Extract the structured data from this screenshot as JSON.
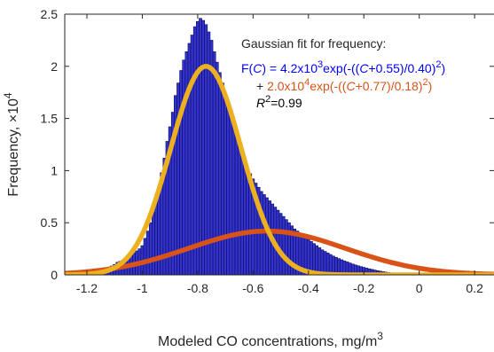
{
  "chart_data": {
    "type": "bar",
    "xlabel": "Modeled CO concentrations, mg/m",
    "xlabel_sup": "3",
    "ylabel": "Frequency, ×10",
    "ylabel_sup": "4",
    "xlim": [
      -1.28,
      0.27
    ],
    "ylim": [
      0,
      2.5
    ],
    "x_ticks": [
      -1.2,
      -1,
      -0.8,
      -0.6,
      -0.4,
      -0.2,
      0,
      0.2
    ],
    "x_tick_labels": [
      "-1.2",
      "-1",
      "-0.8",
      "-0.6",
      "-0.4",
      "-0.2",
      "0",
      "0.2"
    ],
    "y_ticks": [
      0,
      0.5,
      1,
      1.5,
      2,
      2.5
    ],
    "y_tick_labels": [
      "0",
      "0.5",
      "1",
      "1.5",
      "2",
      "2.5"
    ],
    "bin_width": 0.01,
    "histogram": {
      "x": [
        -1.2,
        -1.19,
        -1.18,
        -1.17,
        -1.16,
        -1.15,
        -1.14,
        -1.13,
        -1.12,
        -1.11,
        -1.1,
        -1.09,
        -1.08,
        -1.07,
        -1.06,
        -1.05,
        -1.04,
        -1.03,
        -1.02,
        -1.01,
        -1.0,
        -0.99,
        -0.98,
        -0.97,
        -0.96,
        -0.95,
        -0.94,
        -0.93,
        -0.92,
        -0.91,
        -0.9,
        -0.89,
        -0.88,
        -0.87,
        -0.86,
        -0.85,
        -0.84,
        -0.83,
        -0.82,
        -0.81,
        -0.8,
        -0.79,
        -0.78,
        -0.77,
        -0.76,
        -0.75,
        -0.74,
        -0.73,
        -0.72,
        -0.71,
        -0.7,
        -0.69,
        -0.68,
        -0.67,
        -0.66,
        -0.65,
        -0.64,
        -0.63,
        -0.62,
        -0.61,
        -0.6,
        -0.59,
        -0.58,
        -0.57,
        -0.56,
        -0.55,
        -0.54,
        -0.53,
        -0.52,
        -0.51,
        -0.5,
        -0.49,
        -0.48,
        -0.47,
        -0.46,
        -0.45,
        -0.44,
        -0.43,
        -0.42,
        -0.41,
        -0.4,
        -0.39,
        -0.38,
        -0.37,
        -0.36,
        -0.35,
        -0.34,
        -0.33,
        -0.32,
        -0.31,
        -0.3,
        -0.29,
        -0.28,
        -0.27,
        -0.26,
        -0.25,
        -0.24,
        -0.23,
        -0.22,
        -0.21,
        -0.2,
        -0.19,
        -0.18,
        -0.17,
        -0.16,
        -0.15,
        -0.14,
        -0.13,
        -0.12,
        -0.11,
        -0.1,
        -0.09,
        -0.08,
        -0.07,
        -0.06,
        -0.05,
        -0.04,
        -0.03,
        -0.02,
        -0.01,
        0.0,
        0.01,
        0.02
      ],
      "values": [
        0.004,
        0.006,
        0.008,
        0.012,
        0.015,
        0.02,
        0.035,
        0.06,
        0.075,
        0.085,
        0.1,
        0.12,
        0.13,
        0.14,
        0.15,
        0.17,
        0.19,
        0.21,
        0.23,
        0.25,
        0.28,
        0.35,
        0.42,
        0.5,
        0.6,
        0.72,
        0.84,
        0.98,
        1.12,
        1.28,
        1.42,
        1.56,
        1.72,
        1.84,
        1.96,
        2.06,
        2.14,
        2.22,
        2.3,
        2.38,
        2.43,
        2.46,
        2.44,
        2.4,
        2.33,
        2.25,
        2.14,
        2.04,
        1.94,
        1.84,
        1.74,
        1.64,
        1.54,
        1.44,
        1.33,
        1.24,
        1.16,
        1.08,
        1.02,
        0.97,
        0.92,
        0.88,
        0.84,
        0.8,
        0.77,
        0.74,
        0.71,
        0.68,
        0.65,
        0.62,
        0.59,
        0.56,
        0.53,
        0.5,
        0.47,
        0.44,
        0.42,
        0.4,
        0.38,
        0.36,
        0.34,
        0.32,
        0.3,
        0.28,
        0.26,
        0.24,
        0.225,
        0.21,
        0.195,
        0.18,
        0.168,
        0.156,
        0.145,
        0.134,
        0.124,
        0.114,
        0.104,
        0.095,
        0.087,
        0.079,
        0.072,
        0.065,
        0.058,
        0.052,
        0.046,
        0.04,
        0.035,
        0.03,
        0.026,
        0.022,
        0.019,
        0.016,
        0.013,
        0.011,
        0.009,
        0.007,
        0.005,
        0.004,
        0.003,
        0.002,
        0.0015,
        0.001,
        0.0005
      ]
    },
    "fits": [
      {
        "color": "#d95319",
        "amplitude": 0.42,
        "center": -0.55,
        "width": 0.4
      },
      {
        "color": "#edb120",
        "amplitude": 2.0,
        "center": -0.77,
        "width": 0.18
      }
    ],
    "colors": {
      "bar_fill": "#3333cc",
      "bar_edge": "#0a0a5c",
      "axis": "#262626",
      "blue_text": "#0000ff",
      "red_text": "#d95319"
    },
    "annotation": {
      "title": "Gaussian fit for frequency:",
      "line1_prefix": "F(",
      "line1_var": "C",
      "line1_mid": ") = 4.2x10",
      "line1_sup": "3",
      "line1_exp_a": "exp(-((",
      "line1_var2": "C",
      "line1_exp_b": "+0.55)/0.40)",
      "line1_sup2": "2",
      "line1_end": ")",
      "line2_plus": "+ ",
      "line2_mid": "2.0x10",
      "line2_sup": "4",
      "line2_exp_a": "exp(-((",
      "line2_var": "C",
      "line2_exp_b": "+0.77)/0.18)",
      "line2_sup2": "2",
      "line2_end": ")",
      "r2_var": "R",
      "r2_sup": "2",
      "r2_val": "=0.99"
    }
  }
}
